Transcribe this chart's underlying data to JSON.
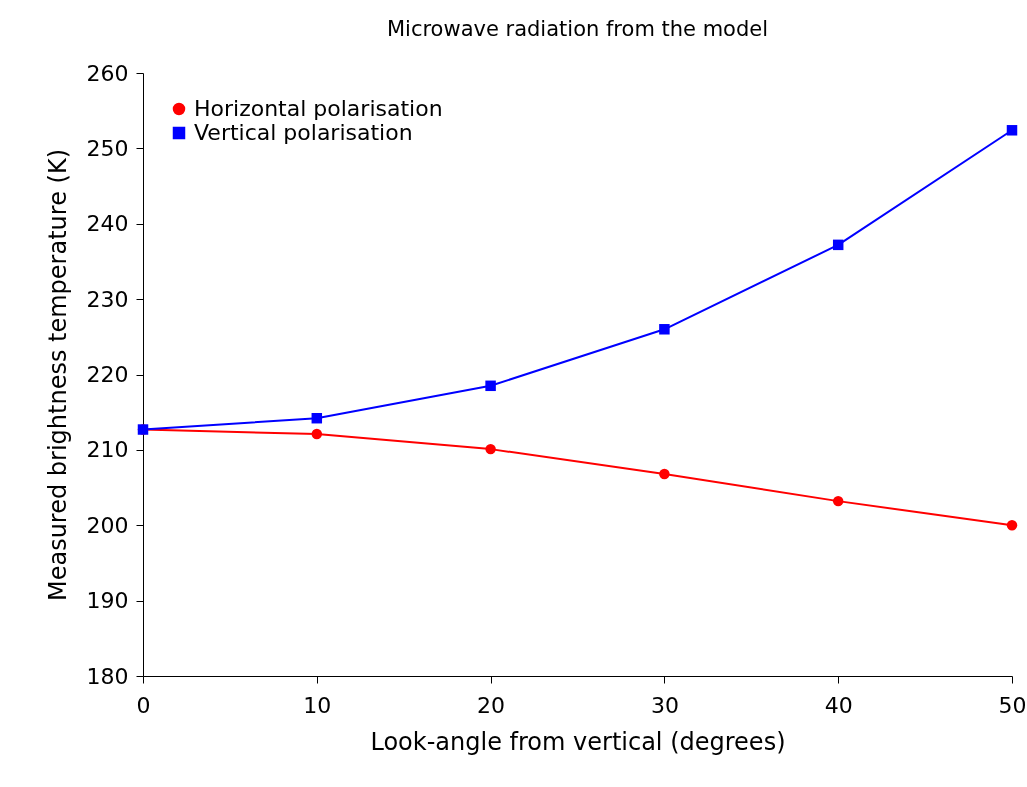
{
  "chart_data": {
    "type": "line",
    "title": "Microwave radiation from the model",
    "xlabel": "Look-angle from vertical (degrees)",
    "ylabel": "Measured brightness temperature (K)",
    "x": [
      0,
      10,
      20,
      30,
      40,
      50
    ],
    "series": [
      {
        "name": "Horizontal polarisation",
        "color": "#ff0000",
        "marker": "circle",
        "values": [
          212.7,
          212.1,
          210.1,
          206.8,
          203.2,
          200.0
        ]
      },
      {
        "name": "Vertical polarisation",
        "color": "#0000ff",
        "marker": "square",
        "values": [
          212.7,
          214.2,
          218.5,
          226.0,
          237.2,
          252.4
        ]
      }
    ],
    "xlim": [
      0,
      50
    ],
    "xticks": [
      0,
      10,
      20,
      30,
      40,
      50
    ],
    "ylim": [
      180,
      260
    ],
    "yticks": [
      180,
      190,
      200,
      210,
      220,
      230,
      240,
      250,
      260
    ],
    "grid": false,
    "legend": "top left",
    "line_style": "solid"
  }
}
